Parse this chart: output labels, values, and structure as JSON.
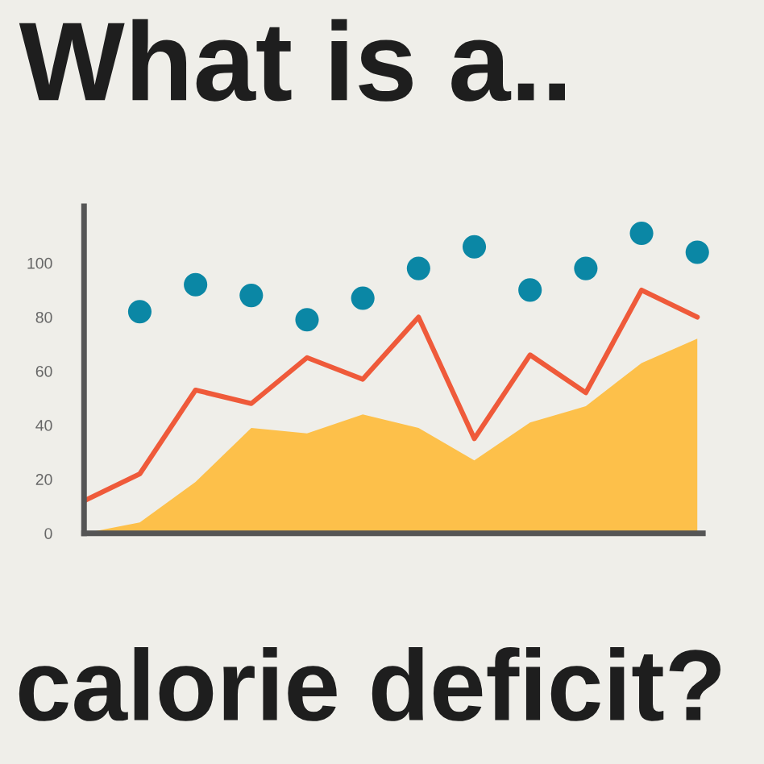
{
  "chart_data": {
    "type": "line",
    "title": "What is a..",
    "annotations": [
      "calorie deficit?"
    ],
    "categories": [
      null,
      null,
      null,
      null,
      null,
      null,
      null,
      null,
      null,
      null,
      null,
      null
    ],
    "series": [
      {
        "type": "area",
        "color": "#fdc04a",
        "values": [
          0,
          4,
          19,
          39,
          37,
          44,
          39,
          27,
          41,
          47,
          63,
          72
        ]
      },
      {
        "color": "#ef5a3a",
        "values": [
          12,
          22,
          53,
          48,
          65,
          57,
          80,
          35,
          66,
          52,
          90,
          80
        ]
      },
      {
        "type": "scatter",
        "marker": "circle",
        "color": "#0b87a5",
        "values": [
          null,
          82,
          92,
          88,
          79,
          87,
          98,
          106,
          90,
          98,
          111,
          104
        ]
      }
    ],
    "ylim": [
      0,
      121
    ],
    "yticks": [
      0,
      20,
      40,
      60,
      80,
      100
    ],
    "grid": false,
    "legend": false
  }
}
